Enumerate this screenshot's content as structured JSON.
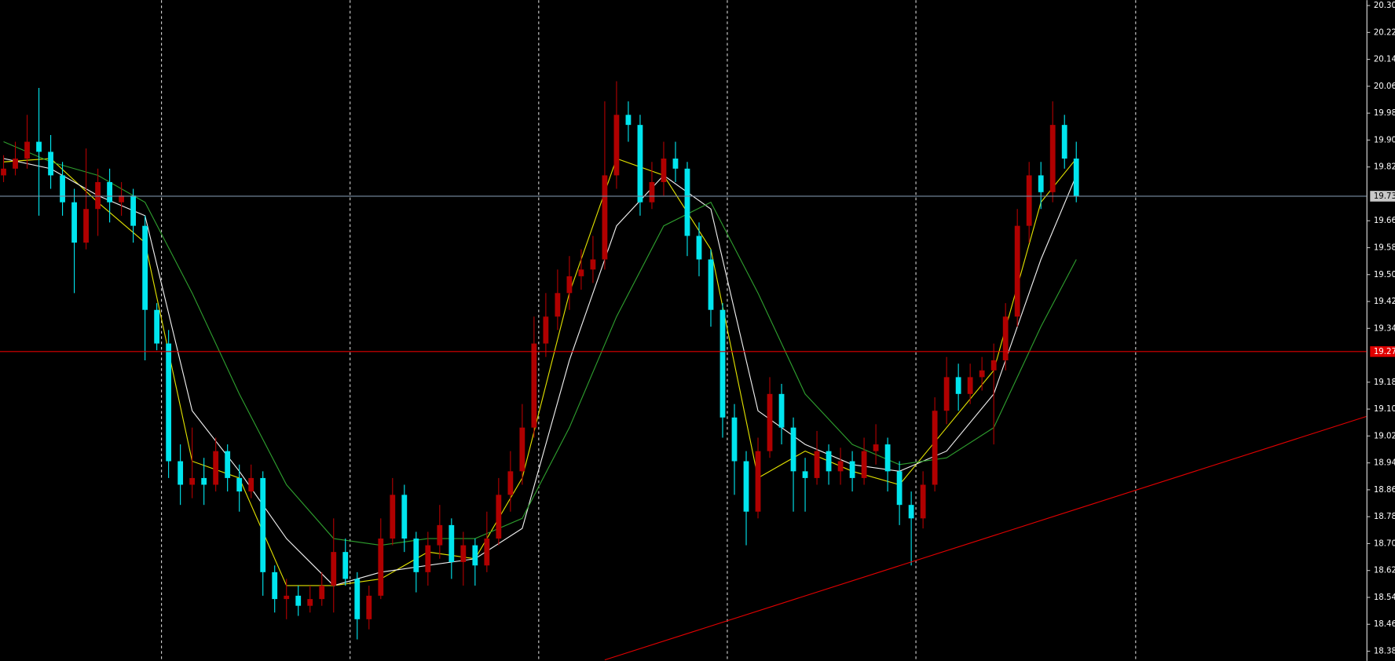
{
  "chart_data": {
    "type": "candlestick",
    "up_color": "#b00000",
    "down_color": "#00e5ee",
    "open": [
      19.8,
      19.82,
      19.85,
      19.9,
      19.87,
      19.8,
      19.72,
      19.6,
      19.7,
      19.78,
      19.72,
      19.74,
      19.65,
      19.4,
      19.3,
      18.95,
      18.88,
      18.9,
      18.88,
      18.98,
      18.9,
      18.86,
      18.9,
      18.62,
      18.54,
      18.55,
      18.52,
      18.54,
      18.58,
      18.68,
      18.6,
      18.48,
      18.55,
      18.72,
      18.85,
      18.72,
      18.62,
      18.7,
      18.76,
      18.65,
      18.7,
      18.64,
      18.72,
      18.85,
      18.92,
      19.05,
      19.3,
      19.38,
      19.45,
      19.5,
      19.52,
      19.55,
      19.8,
      19.98,
      19.95,
      19.72,
      19.78,
      19.85,
      19.82,
      19.62,
      19.55,
      19.4,
      19.08,
      18.95,
      18.8,
      18.98,
      19.15,
      19.05,
      18.92,
      18.9,
      18.98,
      18.92,
      18.95,
      18.9,
      18.98,
      19.0,
      18.92,
      18.82,
      18.78,
      18.88,
      19.1,
      19.2,
      19.15,
      19.2,
      19.22,
      19.25,
      19.38,
      19.65,
      19.8,
      19.75,
      19.95,
      19.85
    ],
    "high": [
      19.86,
      19.9,
      19.98,
      20.06,
      19.92,
      19.84,
      19.76,
      19.88,
      19.82,
      19.82,
      19.78,
      19.76,
      19.68,
      19.42,
      19.34,
      19.0,
      19.05,
      18.96,
      19.02,
      19.0,
      18.94,
      18.94,
      18.92,
      18.64,
      18.6,
      18.58,
      18.58,
      18.62,
      18.78,
      18.72,
      18.62,
      18.58,
      18.78,
      18.9,
      18.88,
      18.74,
      18.74,
      18.82,
      18.78,
      18.74,
      18.72,
      18.8,
      18.9,
      18.98,
      19.12,
      19.38,
      19.45,
      19.52,
      19.56,
      19.58,
      19.62,
      20.02,
      20.08,
      20.02,
      19.98,
      19.84,
      19.9,
      19.9,
      19.84,
      19.66,
      19.58,
      19.42,
      19.12,
      18.98,
      19.02,
      19.2,
      19.18,
      19.08,
      18.96,
      19.04,
      19.0,
      18.99,
      18.98,
      19.02,
      19.06,
      19.02,
      18.95,
      18.86,
      18.92,
      19.14,
      19.26,
      19.24,
      19.24,
      19.26,
      19.3,
      19.42,
      19.7,
      19.84,
      19.84,
      20.02,
      19.98,
      19.9
    ],
    "low": [
      19.78,
      19.8,
      19.82,
      19.68,
      19.76,
      19.68,
      19.45,
      19.58,
      19.62,
      19.66,
      19.68,
      19.6,
      19.25,
      19.28,
      18.9,
      18.82,
      18.84,
      18.82,
      18.86,
      18.86,
      18.8,
      18.84,
      18.55,
      18.5,
      18.48,
      18.49,
      18.5,
      18.52,
      18.5,
      18.58,
      18.42,
      18.45,
      18.54,
      18.7,
      18.68,
      18.56,
      18.58,
      18.66,
      18.6,
      18.58,
      18.58,
      18.62,
      18.7,
      18.8,
      18.88,
      19.02,
      19.26,
      19.34,
      19.4,
      19.46,
      19.48,
      19.52,
      19.76,
      19.9,
      19.68,
      19.7,
      19.74,
      19.78,
      19.56,
      19.5,
      19.35,
      19.02,
      18.85,
      18.7,
      18.78,
      18.96,
      19.0,
      18.8,
      18.8,
      18.88,
      18.88,
      18.88,
      18.86,
      18.88,
      18.94,
      18.86,
      18.76,
      18.64,
      18.75,
      18.86,
      19.06,
      19.1,
      19.12,
      19.16,
      19.0,
      19.22,
      19.35,
      19.6,
      19.7,
      19.72,
      19.82,
      19.72
    ],
    "close": [
      19.82,
      19.85,
      19.9,
      19.87,
      19.8,
      19.72,
      19.6,
      19.7,
      19.78,
      19.72,
      19.74,
      19.65,
      19.4,
      19.3,
      18.95,
      18.88,
      18.9,
      18.88,
      18.98,
      18.9,
      18.86,
      18.9,
      18.62,
      18.54,
      18.55,
      18.52,
      18.54,
      18.58,
      18.68,
      18.6,
      18.48,
      18.55,
      18.72,
      18.85,
      18.72,
      18.62,
      18.7,
      18.76,
      18.65,
      18.7,
      18.64,
      18.72,
      18.85,
      18.92,
      19.05,
      19.3,
      19.38,
      19.45,
      19.5,
      19.52,
      19.55,
      19.8,
      19.98,
      19.95,
      19.72,
      19.78,
      19.85,
      19.82,
      19.62,
      19.55,
      19.4,
      19.08,
      18.95,
      18.8,
      18.98,
      19.15,
      19.05,
      18.92,
      18.9,
      18.98,
      18.92,
      18.95,
      18.9,
      18.98,
      19.0,
      18.92,
      18.82,
      18.78,
      18.88,
      19.1,
      19.2,
      19.15,
      19.2,
      19.22,
      19.25,
      19.38,
      19.65,
      19.8,
      19.75,
      19.95,
      19.85,
      19.738
    ],
    "series": [
      {
        "color": "#e0e000",
        "x": [
          0,
          4,
          8,
          12,
          16,
          20,
          24,
          28,
          32,
          36,
          40,
          44,
          48,
          52,
          56,
          60,
          64,
          68,
          72,
          76,
          80,
          84,
          88,
          91
        ],
        "values": [
          19.84,
          19.85,
          19.72,
          19.6,
          18.95,
          18.9,
          18.58,
          18.58,
          18.6,
          18.68,
          18.66,
          18.9,
          19.45,
          19.85,
          19.8,
          19.58,
          18.9,
          18.98,
          18.92,
          18.88,
          19.05,
          19.22,
          19.72,
          19.85
        ]
      },
      {
        "color": "#f0f0f0",
        "x": [
          0,
          4,
          8,
          12,
          16,
          20,
          24,
          28,
          32,
          36,
          40,
          44,
          48,
          52,
          56,
          60,
          64,
          68,
          72,
          76,
          80,
          84,
          88,
          91
        ],
        "values": [
          19.85,
          19.82,
          19.74,
          19.68,
          19.1,
          18.92,
          18.72,
          18.58,
          18.62,
          18.64,
          18.66,
          18.75,
          19.25,
          19.65,
          19.8,
          19.7,
          19.1,
          19.0,
          18.94,
          18.92,
          18.98,
          19.15,
          19.55,
          19.8
        ]
      },
      {
        "color": "#2e9e2e",
        "x": [
          0,
          4,
          8,
          12,
          16,
          20,
          24,
          28,
          32,
          36,
          40,
          44,
          48,
          52,
          56,
          60,
          64,
          68,
          72,
          76,
          80,
          84,
          88,
          91
        ],
        "values": [
          19.9,
          19.84,
          19.8,
          19.72,
          19.45,
          19.15,
          18.88,
          18.72,
          18.7,
          18.72,
          18.72,
          18.78,
          19.05,
          19.38,
          19.65,
          19.72,
          19.45,
          19.15,
          19.0,
          18.94,
          18.96,
          19.05,
          19.35,
          19.55
        ]
      }
    ],
    "trendline": {
      "color": "#e00000",
      "x": [
        51,
        115.6
      ],
      "values": [
        18.359,
        19.083
      ]
    },
    "price_lines": [
      {
        "value": 19.738,
        "color": "#7b8fa6",
        "label_color": "#c8c8c8",
        "text_color": "#000000"
      },
      {
        "value": 19.276,
        "color": "#e00000",
        "label_color": "#e00000",
        "text_color": "#ffffff"
      }
    ],
    "ylim": [
      18.359,
      20.321
    ],
    "yticks": [
      20.305,
      20.225,
      20.145,
      20.065,
      19.985,
      19.905,
      19.825,
      19.665,
      19.585,
      19.505,
      19.425,
      19.345,
      19.185,
      19.105,
      19.025,
      18.945,
      18.865,
      18.785,
      18.705,
      18.625,
      18.545,
      18.465,
      18.385
    ]
  }
}
